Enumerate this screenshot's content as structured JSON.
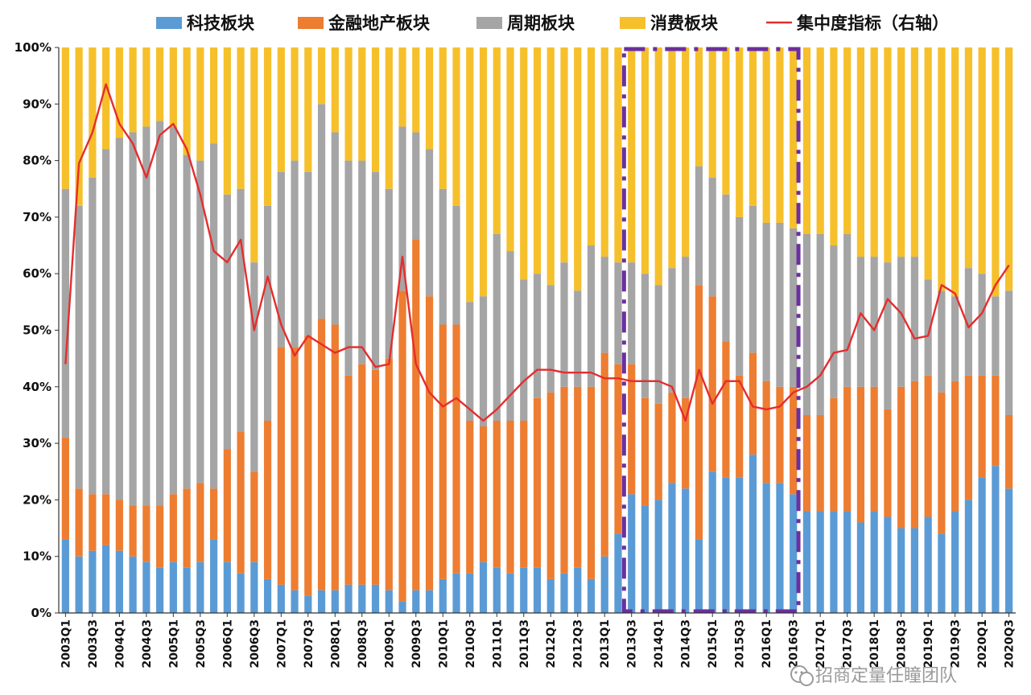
{
  "chart_data": {
    "type": "bar",
    "stacked": true,
    "categories": [
      "2003Q1",
      "2003Q2",
      "2003Q3",
      "2003Q4",
      "2004Q1",
      "2004Q2",
      "2004Q3",
      "2004Q4",
      "2005Q1",
      "2005Q2",
      "2005Q3",
      "2005Q4",
      "2006Q1",
      "2006Q2",
      "2006Q3",
      "2006Q4",
      "2007Q1",
      "2007Q2",
      "2007Q3",
      "2007Q4",
      "2008Q1",
      "2008Q2",
      "2008Q3",
      "2008Q4",
      "2009Q1",
      "2009Q2",
      "2009Q3",
      "2009Q4",
      "2010Q1",
      "2010Q2",
      "2010Q3",
      "2010Q4",
      "2011Q1",
      "2011Q2",
      "2011Q3",
      "2011Q4",
      "2012Q1",
      "2012Q2",
      "2012Q3",
      "2012Q4",
      "2013Q1",
      "2013Q2",
      "2013Q3",
      "2013Q4",
      "2014Q1",
      "2014Q2",
      "2014Q3",
      "2014Q4",
      "2015Q1",
      "2015Q2",
      "2015Q3",
      "2015Q4",
      "2016Q1",
      "2016Q2",
      "2016Q3",
      "2016Q4",
      "2017Q1",
      "2017Q2",
      "2017Q3",
      "2017Q4",
      "2018Q1",
      "2018Q2",
      "2018Q3",
      "2018Q4",
      "2019Q1",
      "2019Q2",
      "2019Q3",
      "2019Q4",
      "2020Q1",
      "2020Q2",
      "2020Q3"
    ],
    "x_tick_labels": [
      "2003Q1",
      "2003Q3",
      "2004Q1",
      "2004Q3",
      "2005Q1",
      "2005Q3",
      "2006Q1",
      "2006Q3",
      "2007Q1",
      "2007Q3",
      "2008Q1",
      "2008Q3",
      "2009Q1",
      "2009Q3",
      "2010Q1",
      "2010Q3",
      "2011Q1",
      "2011Q3",
      "2012Q1",
      "2012Q3",
      "2013Q1",
      "2013Q3",
      "2014Q1",
      "2014Q3",
      "2015Q1",
      "2015Q3",
      "2016Q1",
      "2016Q3",
      "2017Q1",
      "2017Q3",
      "2018Q1",
      "2018Q3",
      "2019Q1",
      "2019Q3",
      "2020Q1",
      "2020Q3"
    ],
    "y_tick_labels": [
      "0%",
      "10%",
      "20%",
      "30%",
      "40%",
      "50%",
      "60%",
      "70%",
      "80%",
      "90%",
      "100%"
    ],
    "ylim": [
      0,
      100
    ],
    "series": [
      {
        "name": "科技板块",
        "color": "#5b9bd5",
        "values": [
          13,
          10,
          11,
          12,
          11,
          10,
          9,
          8,
          9,
          8,
          9,
          13,
          9,
          7,
          9,
          6,
          5,
          4,
          3,
          4,
          4,
          5,
          5,
          5,
          4,
          2,
          4,
          4,
          6,
          7,
          7,
          9,
          8,
          7,
          8,
          8,
          6,
          7,
          8,
          6,
          10,
          14,
          21,
          19,
          20,
          23,
          22,
          13,
          25,
          24,
          24,
          28,
          23,
          23,
          21,
          18,
          18,
          18,
          18,
          16,
          18,
          17,
          15,
          15,
          17,
          14,
          18,
          20,
          24,
          26,
          22
        ]
      },
      {
        "name": "金融地产板块",
        "color": "#ed7d31",
        "values": [
          18,
          12,
          10,
          9,
          9,
          9,
          10,
          11,
          12,
          14,
          14,
          9,
          20,
          25,
          16,
          28,
          42,
          43,
          46,
          48,
          47,
          37,
          39,
          38,
          41,
          55,
          62,
          52,
          45,
          44,
          27,
          24,
          26,
          27,
          26,
          30,
          33,
          33,
          32,
          34,
          36,
          30,
          23,
          19,
          17,
          16,
          16,
          45,
          31,
          24,
          18,
          18,
          18,
          17,
          19,
          17,
          17,
          20,
          22,
          24,
          22,
          19,
          25,
          26,
          25,
          25,
          23,
          22,
          18,
          16,
          13
        ]
      },
      {
        "name": "周期板块",
        "color": "#a5a5a5",
        "values": [
          44,
          50,
          56,
          61,
          64,
          66,
          67,
          68,
          65,
          59,
          57,
          61,
          45,
          43,
          37,
          38,
          31,
          33,
          29,
          38,
          34,
          38,
          36,
          35,
          30,
          29,
          19,
          26,
          24,
          21,
          21,
          23,
          33,
          30,
          25,
          22,
          19,
          22,
          17,
          25,
          17,
          18,
          18,
          22,
          21,
          22,
          25,
          21,
          21,
          26,
          28,
          26,
          28,
          29,
          28,
          32,
          32,
          27,
          27,
          23,
          23,
          26,
          23,
          22,
          17,
          18,
          15,
          19,
          18,
          14,
          22
        ]
      },
      {
        "name": "消费板块",
        "color": "#f6c02c",
        "values": [
          25,
          28,
          23,
          18,
          16,
          15,
          14,
          13,
          14,
          19,
          20,
          17,
          26,
          25,
          38,
          28,
          22,
          20,
          22,
          10,
          15,
          20,
          20,
          22,
          25,
          14,
          15,
          18,
          25,
          28,
          45,
          44,
          33,
          36,
          41,
          40,
          42,
          38,
          43,
          35,
          37,
          38,
          38,
          40,
          42,
          39,
          37,
          21,
          23,
          26,
          30,
          28,
          31,
          31,
          32,
          33,
          33,
          35,
          33,
          37,
          37,
          38,
          37,
          37,
          41,
          43,
          44,
          39,
          40,
          44,
          43
        ]
      }
    ],
    "line_series": {
      "name": "集中度指标（右轴）",
      "color": "#e52d2d",
      "values": [
        44,
        79.5,
        85,
        93.5,
        86.5,
        83,
        77,
        84.5,
        86.5,
        82,
        74,
        64,
        62,
        66,
        50,
        59.5,
        51,
        45.5,
        49,
        47.5,
        46,
        47,
        47,
        43.5,
        44,
        63,
        44,
        39,
        36.5,
        38,
        36,
        34,
        36,
        38.5,
        41,
        43,
        43,
        42.5,
        42.5,
        42.5,
        41.5,
        41.5,
        41,
        41,
        41,
        40,
        34,
        43,
        37,
        41,
        41,
        36.5,
        36,
        36.5,
        39,
        40,
        42,
        46,
        46.5,
        53,
        50,
        55.5,
        53,
        48.5,
        49,
        58,
        56.5,
        50.5,
        53,
        58,
        61.5
      ]
    },
    "title": "",
    "xlabel": "",
    "ylabel": "",
    "highlight_box": {
      "from": "2013Q3",
      "to": "2016Q3",
      "color": "#6b2fa0",
      "style": "dash-dot"
    }
  },
  "watermark": {
    "text": "招商定量任瞳团队",
    "icon": "wechat-icon"
  }
}
